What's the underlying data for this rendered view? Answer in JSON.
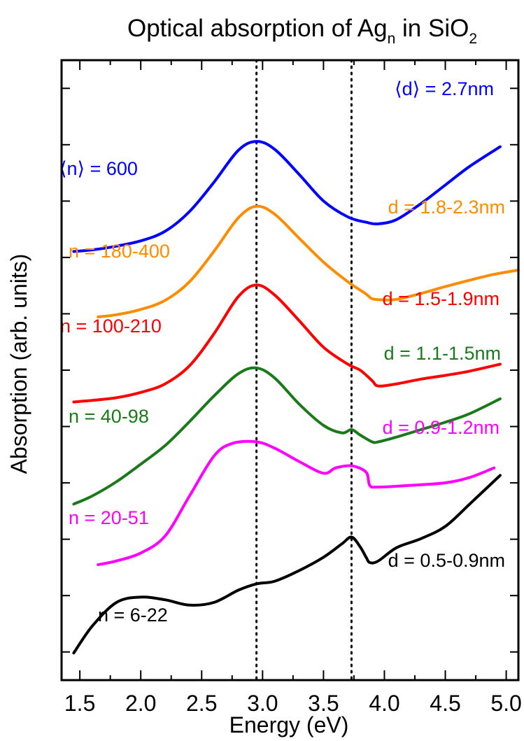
{
  "chart_data": {
    "type": "line",
    "title": {
      "prefix": "Optical absorption of Ag",
      "sub1": "n",
      "middle": " in SiO",
      "sub2": "2"
    },
    "xlabel": "Energy (eV)",
    "ylabel": "Absorption (arb. units)",
    "xlim": [
      1.35,
      5.1
    ],
    "ylim": [
      0,
      100
    ],
    "xticks": [
      "1.5",
      "2.0",
      "2.5",
      "3.0",
      "3.5",
      "4.0",
      "4.5",
      "5.0"
    ],
    "xtick_values": [
      1.5,
      2.0,
      2.5,
      3.0,
      3.5,
      4.0,
      4.5,
      5.0
    ],
    "y_tick_count": 11,
    "reference_lines": [
      2.95,
      3.73
    ],
    "y_units": "arbitrary, curves vertically offset",
    "series": [
      {
        "name": "⟨n⟩ = 600",
        "size_label": "⟨d⟩ = 2.7nm",
        "color": "#0000ff",
        "x": [
          1.45,
          1.6,
          1.8,
          2.0,
          2.2,
          2.4,
          2.6,
          2.8,
          2.95,
          3.1,
          3.3,
          3.5,
          3.7,
          3.85,
          3.95,
          4.1,
          4.3,
          4.5,
          4.7,
          4.95
        ],
        "y": [
          68.5,
          68.8,
          69.5,
          70.5,
          72.3,
          76.0,
          81.5,
          87.5,
          89.2,
          87.7,
          83.0,
          78.0,
          75.0,
          74.0,
          73.7,
          74.5,
          77.5,
          81.0,
          84.5,
          88.2
        ]
      },
      {
        "name": "n = 180-400",
        "size_label": "d = 1.8-2.3nm",
        "color": "#ff8c00",
        "x": [
          1.65,
          1.8,
          2.0,
          2.2,
          2.4,
          2.6,
          2.8,
          2.95,
          3.1,
          3.3,
          3.5,
          3.7,
          3.85,
          3.9,
          4.0,
          4.1,
          4.3,
          4.5,
          4.7,
          4.9,
          5.1
        ],
        "y": [
          56.2,
          56.6,
          57.6,
          59.3,
          62.8,
          68.5,
          74.8,
          77.0,
          75.5,
          71.0,
          66.5,
          62.8,
          60.5,
          59.6,
          59.4,
          59.5,
          60.6,
          61.9,
          63.1,
          64.2,
          65.0
        ]
      },
      {
        "name": "n = 100-210",
        "size_label": "d = 1.5-1.9nm",
        "color": "#ff0000",
        "x": [
          1.45,
          1.6,
          1.8,
          2.0,
          2.2,
          2.4,
          2.6,
          2.8,
          2.95,
          3.1,
          3.3,
          3.5,
          3.7,
          3.8,
          3.9,
          3.95,
          4.1,
          4.3,
          4.5,
          4.7,
          4.95
        ],
        "y": [
          40.2,
          40.5,
          41.0,
          42.0,
          43.6,
          47.0,
          53.0,
          60.0,
          62.2,
          60.3,
          55.5,
          50.5,
          47.3,
          46.2,
          44.2,
          43.2,
          43.6,
          44.5,
          45.2,
          46.0,
          47.3
        ]
      },
      {
        "name": "n = 40-98",
        "size_label": "d = 1.1-1.5nm",
        "color": "#1a7a1a",
        "x": [
          1.45,
          1.6,
          1.8,
          2.0,
          2.2,
          2.4,
          2.6,
          2.8,
          2.95,
          3.1,
          3.3,
          3.5,
          3.65,
          3.73,
          3.8,
          3.9,
          3.95,
          4.1,
          4.3,
          4.5,
          4.7,
          4.95
        ],
        "y": [
          21.0,
          22.5,
          25.2,
          28.5,
          32.0,
          36.5,
          41.3,
          45.5,
          46.6,
          44.7,
          39.8,
          35.8,
          34.4,
          35.0,
          34.0,
          32.7,
          32.7,
          33.6,
          35.0,
          36.4,
          38.0,
          40.8
        ]
      },
      {
        "name": "n = 20-51",
        "size_label": "d = 0.9-1.2nm",
        "color": "#ff00ff",
        "x": [
          1.65,
          1.8,
          2.0,
          2.2,
          2.4,
          2.6,
          2.75,
          2.95,
          3.1,
          3.3,
          3.5,
          3.6,
          3.73,
          3.85,
          3.88,
          3.95,
          4.2,
          4.5,
          4.7,
          4.9
        ],
        "y": [
          9.6,
          10.3,
          11.8,
          15.0,
          22.5,
          30.0,
          32.4,
          32.7,
          31.5,
          29.0,
          26.8,
          27.8,
          28.2,
          27.0,
          24.5,
          24.2,
          24.5,
          25.0,
          26.0,
          27.8
        ]
      },
      {
        "name": "n = 6-22",
        "size_label": "d = 0.5-0.9nm",
        "color": "#000000",
        "x": [
          1.45,
          1.6,
          1.8,
          2.0,
          2.2,
          2.4,
          2.6,
          2.8,
          2.95,
          3.1,
          3.3,
          3.5,
          3.65,
          3.73,
          3.8,
          3.85,
          3.88,
          3.95,
          4.1,
          4.3,
          4.5,
          4.7,
          4.95
        ],
        "y": [
          -7.0,
          -2.0,
          2.5,
          3.5,
          3.0,
          2.0,
          2.5,
          4.8,
          6.0,
          6.5,
          8.5,
          11.0,
          13.5,
          14.8,
          13.0,
          11.0,
          10.0,
          10.3,
          12.8,
          14.5,
          16.8,
          21.0,
          26.4
        ]
      }
    ]
  }
}
